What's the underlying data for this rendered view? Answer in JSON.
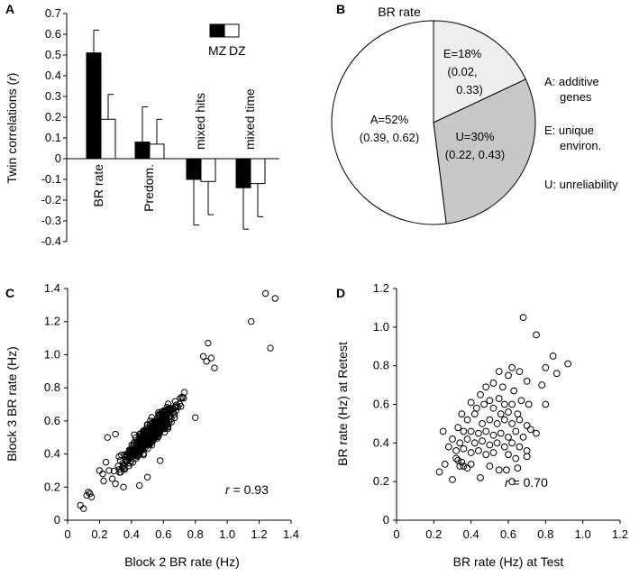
{
  "chart_data": [
    {
      "panel": "A",
      "type": "bar",
      "ylabel": "Twin correlations (r)",
      "ylabel_prefix": "Twin correlations (",
      "ylabel_var": "r",
      "ylabel_suffix": ")",
      "ylim": [
        -0.4,
        0.7
      ],
      "yticks": [
        -0.4,
        -0.3,
        -0.2,
        -0.1,
        0,
        0.1,
        0.2,
        0.3,
        0.4,
        0.5,
        0.6,
        0.7
      ],
      "legend": {
        "mz": "MZ",
        "dz": "DZ"
      },
      "categories": [
        "BR rate",
        "Predom.",
        "mixed hits",
        "mixed time"
      ],
      "series": [
        {
          "name": "MZ",
          "color": "#000000",
          "values": [
            0.51,
            0.08,
            -0.1,
            -0.14
          ],
          "error": [
            0.11,
            0.17,
            0.22,
            0.2
          ]
        },
        {
          "name": "DZ",
          "color": "#ffffff",
          "values": [
            0.19,
            0.07,
            -0.11,
            -0.12
          ],
          "error": [
            0.12,
            0.12,
            0.16,
            0.16
          ]
        }
      ]
    },
    {
      "panel": "B",
      "type": "pie",
      "title": "BR rate",
      "slices": [
        {
          "label": "E=18%",
          "ci1": "(0.02,",
          "ci2": "0.33)",
          "value": 18,
          "color": "#eeeeee"
        },
        {
          "label": "U=30%",
          "ci": "(0.22, 0.43)",
          "value": 30,
          "color": "#c8c8c8"
        },
        {
          "label": "A=52%",
          "ci": "(0.39, 0.62)",
          "value": 52,
          "color": "#ffffff"
        }
      ],
      "legend": {
        "a1": "A: additive",
        "a2": "genes",
        "e1": "E: unique",
        "e2": "environ.",
        "u1": "U: unreliability"
      }
    },
    {
      "panel": "C",
      "type": "scatter",
      "xlabel": "Block 2 BR rate (Hz)",
      "ylabel": "Block 3 BR rate (Hz)",
      "xlim": [
        0,
        1.4
      ],
      "ylim": [
        0,
        1.4
      ],
      "xticks": [
        "0",
        "0.2",
        "0.4",
        "0.6",
        "0.8",
        "1.0",
        "1.2",
        "1.4"
      ],
      "yticks": [
        "0",
        "0.2",
        "0.4",
        "0.6",
        "0.8",
        "1.0",
        "1.2",
        "1.4"
      ],
      "r_label": "r",
      "r_value": "= 0.93",
      "points": [
        [
          1.24,
          1.37
        ],
        [
          1.3,
          1.34
        ],
        [
          1.15,
          1.2
        ],
        [
          1.27,
          1.04
        ],
        [
          0.1,
          0.07
        ],
        [
          0.08,
          0.09
        ],
        [
          0.12,
          0.15
        ],
        [
          0.14,
          0.16
        ],
        [
          0.15,
          0.14
        ],
        [
          0.13,
          0.17
        ],
        [
          0.88,
          1.07
        ],
        [
          0.9,
          0.98
        ],
        [
          0.92,
          0.92
        ],
        [
          0.85,
          0.99
        ],
        [
          0.87,
          0.96
        ],
        [
          0.8,
          0.62
        ],
        [
          0.25,
          0.5
        ],
        [
          0.3,
          0.52
        ],
        [
          0.58,
          0.36
        ],
        [
          0.2,
          0.3
        ],
        [
          0.22,
          0.28
        ],
        [
          0.24,
          0.35
        ],
        [
          0.26,
          0.3
        ],
        [
          0.28,
          0.25
        ],
        [
          0.3,
          0.22
        ],
        [
          0.35,
          0.2
        ],
        [
          0.45,
          0.21
        ],
        [
          0.5,
          0.26
        ]
      ]
    },
    {
      "panel": "D",
      "type": "scatter",
      "xlabel": "BR rate (Hz) at Test",
      "ylabel": "BR rate (Hz) at Retest",
      "xlim": [
        0,
        1.2
      ],
      "ylim": [
        0,
        1.2
      ],
      "xticks": [
        "0",
        "0.2",
        "0.4",
        "0.6",
        "0.8",
        "1.0",
        "1.2"
      ],
      "yticks": [
        "0",
        "0.2",
        "0.4",
        "0.6",
        "0.8",
        "1.0",
        "1.2"
      ],
      "r_label": "r",
      "r_value": "= 0.70",
      "points": [
        [
          0.68,
          1.05
        ],
        [
          0.75,
          0.96
        ],
        [
          0.84,
          0.85
        ],
        [
          0.92,
          0.81
        ],
        [
          0.8,
          0.79
        ],
        [
          0.86,
          0.76
        ],
        [
          0.62,
          0.79
        ],
        [
          0.55,
          0.77
        ],
        [
          0.6,
          0.75
        ],
        [
          0.66,
          0.77
        ],
        [
          0.7,
          0.72
        ],
        [
          0.78,
          0.7
        ],
        [
          0.52,
          0.71
        ],
        [
          0.57,
          0.69
        ],
        [
          0.63,
          0.67
        ],
        [
          0.48,
          0.69
        ],
        [
          0.45,
          0.65
        ],
        [
          0.5,
          0.62
        ],
        [
          0.55,
          0.63
        ],
        [
          0.58,
          0.6
        ],
        [
          0.62,
          0.6
        ],
        [
          0.67,
          0.62
        ],
        [
          0.71,
          0.6
        ],
        [
          0.4,
          0.61
        ],
        [
          0.43,
          0.58
        ],
        [
          0.47,
          0.6
        ],
        [
          0.52,
          0.58
        ],
        [
          0.56,
          0.55
        ],
        [
          0.6,
          0.56
        ],
        [
          0.65,
          0.55
        ],
        [
          0.35,
          0.55
        ],
        [
          0.38,
          0.52
        ],
        [
          0.42,
          0.55
        ],
        [
          0.46,
          0.5
        ],
        [
          0.5,
          0.52
        ],
        [
          0.54,
          0.5
        ],
        [
          0.58,
          0.52
        ],
        [
          0.62,
          0.5
        ],
        [
          0.66,
          0.52
        ],
        [
          0.7,
          0.49
        ],
        [
          0.75,
          0.45
        ],
        [
          0.8,
          0.6
        ],
        [
          0.33,
          0.48
        ],
        [
          0.36,
          0.46
        ],
        [
          0.4,
          0.46
        ],
        [
          0.44,
          0.45
        ],
        [
          0.48,
          0.46
        ],
        [
          0.52,
          0.44
        ],
        [
          0.56,
          0.45
        ],
        [
          0.6,
          0.43
        ],
        [
          0.64,
          0.46
        ],
        [
          0.68,
          0.43
        ],
        [
          0.72,
          0.47
        ],
        [
          0.3,
          0.42
        ],
        [
          0.34,
          0.4
        ],
        [
          0.38,
          0.42
        ],
        [
          0.42,
          0.4
        ],
        [
          0.46,
          0.41
        ],
        [
          0.5,
          0.39
        ],
        [
          0.54,
          0.4
        ],
        [
          0.58,
          0.38
        ],
        [
          0.62,
          0.4
        ],
        [
          0.66,
          0.38
        ],
        [
          0.7,
          0.36
        ],
        [
          0.25,
          0.46
        ],
        [
          0.28,
          0.38
        ],
        [
          0.32,
          0.36
        ],
        [
          0.36,
          0.37
        ],
        [
          0.4,
          0.35
        ],
        [
          0.44,
          0.36
        ],
        [
          0.48,
          0.34
        ],
        [
          0.52,
          0.35
        ],
        [
          0.6,
          0.34
        ],
        [
          0.64,
          0.32
        ],
        [
          0.7,
          0.33
        ],
        [
          0.33,
          0.31
        ],
        [
          0.35,
          0.3
        ],
        [
          0.34,
          0.28
        ],
        [
          0.36,
          0.28
        ],
        [
          0.38,
          0.27
        ],
        [
          0.32,
          0.32
        ],
        [
          0.23,
          0.25
        ],
        [
          0.26,
          0.29
        ],
        [
          0.3,
          0.21
        ],
        [
          0.4,
          0.29
        ],
        [
          0.45,
          0.22
        ],
        [
          0.5,
          0.28
        ],
        [
          0.55,
          0.26
        ],
        [
          0.59,
          0.26
        ],
        [
          0.65,
          0.27
        ],
        [
          0.62,
          0.2
        ]
      ]
    }
  ]
}
